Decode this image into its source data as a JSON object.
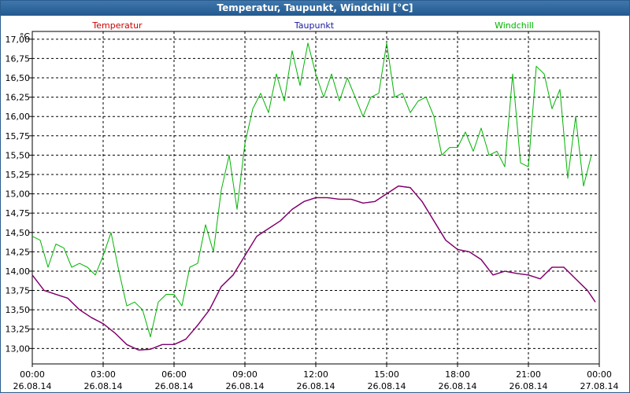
{
  "window": {
    "title": "Temperatur, Taupunkt, Windchill [°C]"
  },
  "colors": {
    "frame": "#2b5d8e",
    "temperature": "#cc0000",
    "dewpoint": "#1a1aa0",
    "windchill": "#00b400",
    "combined_line": "#7a007a",
    "grid": "#000000"
  },
  "chart_data": {
    "type": "line",
    "title": "Temperatur, Taupunkt, Windchill [°C]",
    "ylabel": "°C",
    "xlabel": "",
    "ylim": [
      12.8,
      17.1
    ],
    "xlim": [
      "2014-08-26 00:00",
      "2014-08-27 00:00"
    ],
    "grid": true,
    "legend_placement": "top",
    "legend": [
      "Temperatur",
      "Taupunkt",
      "Windchill"
    ],
    "yticks": [
      "13,00",
      "13,25",
      "13,50",
      "13,75",
      "14,00",
      "14,25",
      "14,50",
      "14,75",
      "15,00",
      "15,25",
      "15,50",
      "15,75",
      "16,00",
      "16,25",
      "16,50",
      "16,75",
      "17,00"
    ],
    "xticks": [
      {
        "time": "00:00",
        "date": "26.08.14"
      },
      {
        "time": "03:00",
        "date": "26.08.14"
      },
      {
        "time": "06:00",
        "date": "26.08.14"
      },
      {
        "time": "09:00",
        "date": "26.08.14"
      },
      {
        "time": "12:00",
        "date": "26.08.14"
      },
      {
        "time": "15:00",
        "date": "26.08.14"
      },
      {
        "time": "18:00",
        "date": "26.08.14"
      },
      {
        "time": "21:00",
        "date": "26.08.14"
      },
      {
        "time": "00:00",
        "date": "27.08.14"
      }
    ],
    "series": [
      {
        "name": "Windchill",
        "x": [
          "00:00",
          "00:20",
          "00:40",
          "01:00",
          "01:20",
          "01:40",
          "02:00",
          "02:20",
          "02:40",
          "03:00",
          "03:20",
          "03:40",
          "04:00",
          "04:20",
          "04:40",
          "05:00",
          "05:20",
          "05:40",
          "06:00",
          "06:20",
          "06:40",
          "07:00",
          "07:20",
          "07:40",
          "08:00",
          "08:20",
          "08:40",
          "09:00",
          "09:20",
          "09:40",
          "10:00",
          "10:20",
          "10:40",
          "11:00",
          "11:20",
          "11:40",
          "12:00",
          "12:20",
          "12:40",
          "13:00",
          "13:20",
          "13:40",
          "14:00",
          "14:20",
          "14:40",
          "15:00",
          "15:20",
          "15:40",
          "16:00",
          "16:20",
          "16:40",
          "17:00",
          "17:20",
          "17:40",
          "18:00",
          "18:20",
          "18:40",
          "19:00",
          "19:20",
          "19:40",
          "20:00",
          "20:20",
          "20:40",
          "21:00",
          "21:20",
          "21:40",
          "22:00",
          "22:20",
          "22:40",
          "23:00",
          "23:20",
          "23:40"
        ],
        "values": [
          14.45,
          14.4,
          14.05,
          14.35,
          14.3,
          14.05,
          14.1,
          14.05,
          13.95,
          14.2,
          14.5,
          14.0,
          13.55,
          13.6,
          13.5,
          13.15,
          13.6,
          13.7,
          13.7,
          13.55,
          14.05,
          14.1,
          14.6,
          14.25,
          15.05,
          15.5,
          14.8,
          15.65,
          16.1,
          16.3,
          16.05,
          16.55,
          16.2,
          16.85,
          16.4,
          16.95,
          16.55,
          16.25,
          16.55,
          16.2,
          16.5,
          16.25,
          16.0,
          16.25,
          16.3,
          16.95,
          16.25,
          16.3,
          16.05,
          16.2,
          16.25,
          16.0,
          15.5,
          15.6,
          15.6,
          15.8,
          15.55,
          15.85,
          15.5,
          15.55,
          15.35,
          16.55,
          15.4,
          15.35,
          16.65,
          16.55,
          16.1,
          16.35,
          15.2,
          16.0,
          15.1,
          15.5
        ]
      },
      {
        "name": "Temperatur",
        "x": [
          "00:00",
          "00:30",
          "01:00",
          "01:30",
          "02:00",
          "02:30",
          "03:00",
          "03:30",
          "04:00",
          "04:30",
          "05:00",
          "05:30",
          "06:00",
          "06:30",
          "07:00",
          "07:30",
          "08:00",
          "08:30",
          "09:00",
          "09:30",
          "10:00",
          "10:30",
          "11:00",
          "11:30",
          "12:00",
          "12:30",
          "13:00",
          "13:30",
          "14:00",
          "14:30",
          "15:00",
          "15:30",
          "16:00",
          "16:30",
          "17:00",
          "17:30",
          "18:00",
          "18:30",
          "19:00",
          "19:30",
          "20:00",
          "20:30",
          "21:00",
          "21:30",
          "22:00",
          "22:30",
          "23:00",
          "23:30",
          "23:50"
        ],
        "values": [
          13.95,
          13.75,
          13.7,
          13.65,
          13.5,
          13.4,
          13.32,
          13.2,
          13.05,
          12.98,
          12.99,
          13.05,
          13.05,
          13.12,
          13.3,
          13.5,
          13.8,
          13.95,
          14.2,
          14.45,
          14.55,
          14.65,
          14.8,
          14.9,
          14.95,
          14.95,
          14.93,
          14.93,
          14.88,
          14.9,
          15.0,
          15.1,
          15.08,
          14.9,
          14.65,
          14.4,
          14.28,
          14.25,
          14.15,
          13.95,
          14.0,
          13.97,
          13.95,
          13.9,
          14.05,
          14.05,
          13.9,
          13.75,
          13.6
        ]
      },
      {
        "name": "Taupunkt",
        "x": [
          "00:00",
          "00:30",
          "01:00",
          "01:30",
          "02:00",
          "02:30",
          "03:00",
          "03:30",
          "04:00",
          "04:30",
          "05:00",
          "05:30",
          "06:00",
          "06:30",
          "07:00",
          "07:30",
          "08:00",
          "08:30",
          "09:00",
          "09:30",
          "10:00",
          "10:30",
          "11:00",
          "11:30",
          "12:00",
          "12:30",
          "13:00",
          "13:30",
          "14:00",
          "14:30",
          "15:00",
          "15:30",
          "16:00",
          "16:30",
          "17:00",
          "17:30",
          "18:00",
          "18:30",
          "19:00",
          "19:30",
          "20:00",
          "20:30",
          "21:00",
          "21:30",
          "22:00",
          "22:30",
          "23:00",
          "23:30",
          "23:50"
        ],
        "values": [
          13.95,
          13.75,
          13.7,
          13.65,
          13.5,
          13.4,
          13.32,
          13.2,
          13.05,
          12.98,
          12.99,
          13.05,
          13.05,
          13.12,
          13.3,
          13.5,
          13.8,
          13.95,
          14.2,
          14.45,
          14.55,
          14.65,
          14.8,
          14.9,
          14.95,
          14.95,
          14.93,
          14.93,
          14.88,
          14.9,
          15.0,
          15.1,
          15.08,
          14.9,
          14.65,
          14.4,
          14.28,
          14.25,
          14.15,
          13.95,
          14.0,
          13.97,
          13.95,
          13.9,
          14.05,
          14.05,
          13.9,
          13.75,
          13.6
        ]
      }
    ]
  }
}
